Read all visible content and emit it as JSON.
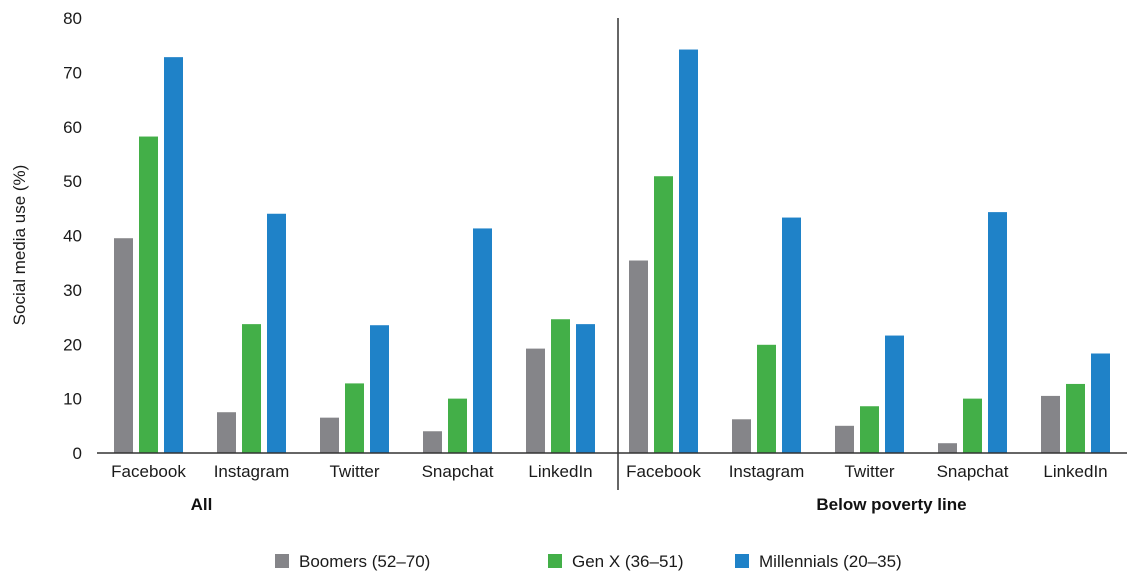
{
  "chart_data": {
    "type": "bar",
    "ylabel": "Social media use (%)",
    "ylim": [
      0,
      80
    ],
    "yticks": [
      0,
      10,
      20,
      30,
      40,
      50,
      60,
      70,
      80
    ],
    "grid": false,
    "legend_position": "bottom-center",
    "groups": [
      {
        "name": "All",
        "categories": [
          "Facebook",
          "Instagram",
          "Twitter",
          "Snapchat",
          "LinkedIn"
        ],
        "series": [
          {
            "name": "Boomers (52–70)",
            "color": "#858589",
            "values": [
              39.5,
              7.5,
              6.5,
              4,
              19.2
            ]
          },
          {
            "name": "Gen X (36–51)",
            "color": "#43af48",
            "values": [
              58.2,
              23.7,
              12.8,
              10,
              24.6
            ]
          },
          {
            "name": "Millennials (20–35)",
            "color": "#1f82c8",
            "values": [
              72.8,
              44,
              23.5,
              41.3,
              23.7
            ]
          }
        ]
      },
      {
        "name": "Below poverty line",
        "categories": [
          "Facebook",
          "Instagram",
          "Twitter",
          "Snapchat",
          "LinkedIn"
        ],
        "series": [
          {
            "name": "Boomers (52–70)",
            "color": "#858589",
            "values": [
              35.4,
              6.2,
              5,
              1.8,
              10.5
            ]
          },
          {
            "name": "Gen X (36–51)",
            "color": "#43af48",
            "values": [
              50.9,
              19.9,
              8.6,
              10,
              12.7
            ]
          },
          {
            "name": "Millennials (20–35)",
            "color": "#1f82c8",
            "values": [
              74.2,
              43.3,
              21.6,
              44.3,
              18.3
            ]
          }
        ]
      }
    ],
    "legend": [
      {
        "label": "Boomers (52–70)",
        "color": "#858589"
      },
      {
        "label": "Gen X (36–51)",
        "color": "#43af48"
      },
      {
        "label": "Millennials (20–35)",
        "color": "#1f82c8"
      }
    ]
  }
}
